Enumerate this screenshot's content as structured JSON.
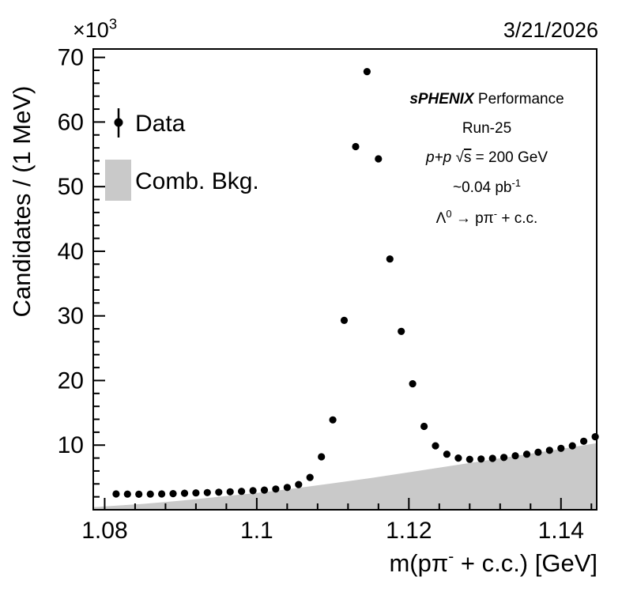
{
  "page": {
    "date": "3/21/2026"
  },
  "chart_data": {
    "type": "scatter",
    "title": "",
    "ylabel": "Candidates / (1 MeV)",
    "xlabel_parts": [
      {
        "t": "m(pπ"
      },
      {
        "t": "-",
        "sup": true
      },
      {
        "t": " + c.c.) [GeV]"
      }
    ],
    "y_exponent_parts": [
      {
        "t": "×10"
      },
      {
        "t": "3",
        "sup": true
      }
    ],
    "xlim": [
      1.0785,
      1.1447
    ],
    "ylim": [
      0,
      71.3
    ],
    "x_major_ticks": [
      1.08,
      1.1,
      1.12,
      1.14
    ],
    "x_tick_labels": [
      "1.08",
      "1.1",
      "1.12",
      "1.14"
    ],
    "x_minor_step": 0.004,
    "y_major_ticks": [
      10,
      20,
      30,
      40,
      50,
      60,
      70
    ],
    "y_minor_step": 2,
    "grid": false,
    "series": [
      {
        "name": "Data",
        "type": "points",
        "color": "#000000",
        "x": [
          1.0815,
          1.083,
          1.0845,
          1.086,
          1.0875,
          1.089,
          1.0905,
          1.092,
          1.0935,
          1.095,
          1.0965,
          1.098,
          1.0995,
          1.101,
          1.1025,
          1.104,
          1.1055,
          1.107,
          1.1085,
          1.11,
          1.1115,
          1.113,
          1.1145,
          1.116,
          1.1175,
          1.119,
          1.1205,
          1.122,
          1.1235,
          1.125,
          1.1265,
          1.128,
          1.1295,
          1.131,
          1.1325,
          1.134,
          1.1355,
          1.137,
          1.1385,
          1.14,
          1.1415,
          1.143,
          1.1445
        ],
        "y": [
          2.45,
          2.42,
          2.4,
          2.42,
          2.45,
          2.5,
          2.55,
          2.6,
          2.65,
          2.72,
          2.78,
          2.85,
          2.95,
          3.05,
          3.2,
          3.45,
          3.9,
          5.0,
          8.2,
          13.9,
          29.3,
          56.2,
          67.8,
          54.3,
          38.8,
          27.6,
          19.5,
          12.9,
          9.9,
          8.6,
          8.0,
          7.8,
          7.85,
          7.95,
          8.1,
          8.35,
          8.6,
          8.9,
          9.2,
          9.5,
          9.9,
          10.6,
          11.3
        ]
      },
      {
        "name": "Comb. Bkg.",
        "type": "filled-area",
        "color": "#c9c9c9",
        "x": [
          1.0785,
          1.085,
          1.09,
          1.095,
          1.1,
          1.105,
          1.11,
          1.115,
          1.12,
          1.125,
          1.13,
          1.135,
          1.14,
          1.1447
        ],
        "y": [
          0.4,
          0.9,
          1.4,
          2.0,
          2.6,
          3.3,
          4.1,
          4.9,
          5.8,
          6.7,
          7.6,
          8.5,
          9.4,
          10.3
        ]
      }
    ],
    "legend": {
      "position": "upper-left",
      "entries": [
        {
          "label": "Data",
          "marker": "point-errorbar",
          "color": "#000000"
        },
        {
          "label": "Comb. Bkg.",
          "marker": "filled-box",
          "color": "#c9c9c9"
        }
      ]
    },
    "annotations": {
      "position": "upper-right",
      "lines": [
        [
          {
            "t": "sPHENIX",
            "b": true,
            "i": true
          },
          {
            "t": " Performance"
          }
        ],
        [
          {
            "t": "Run-25"
          }
        ],
        [
          {
            "t": "p+p",
            "i": true
          },
          {
            "t": " √"
          },
          {
            "t": "s",
            "ol": true
          },
          {
            "t": " = 200 GeV"
          }
        ],
        [
          {
            "t": "~0.04 pb"
          },
          {
            "t": "-1",
            "sup": true
          }
        ],
        [
          {
            "t": "Λ"
          },
          {
            "t": "0",
            "sup": true
          },
          {
            "t": " → pπ"
          },
          {
            "t": "-",
            "sup": true
          },
          {
            "t": " + c.c."
          }
        ]
      ]
    }
  }
}
